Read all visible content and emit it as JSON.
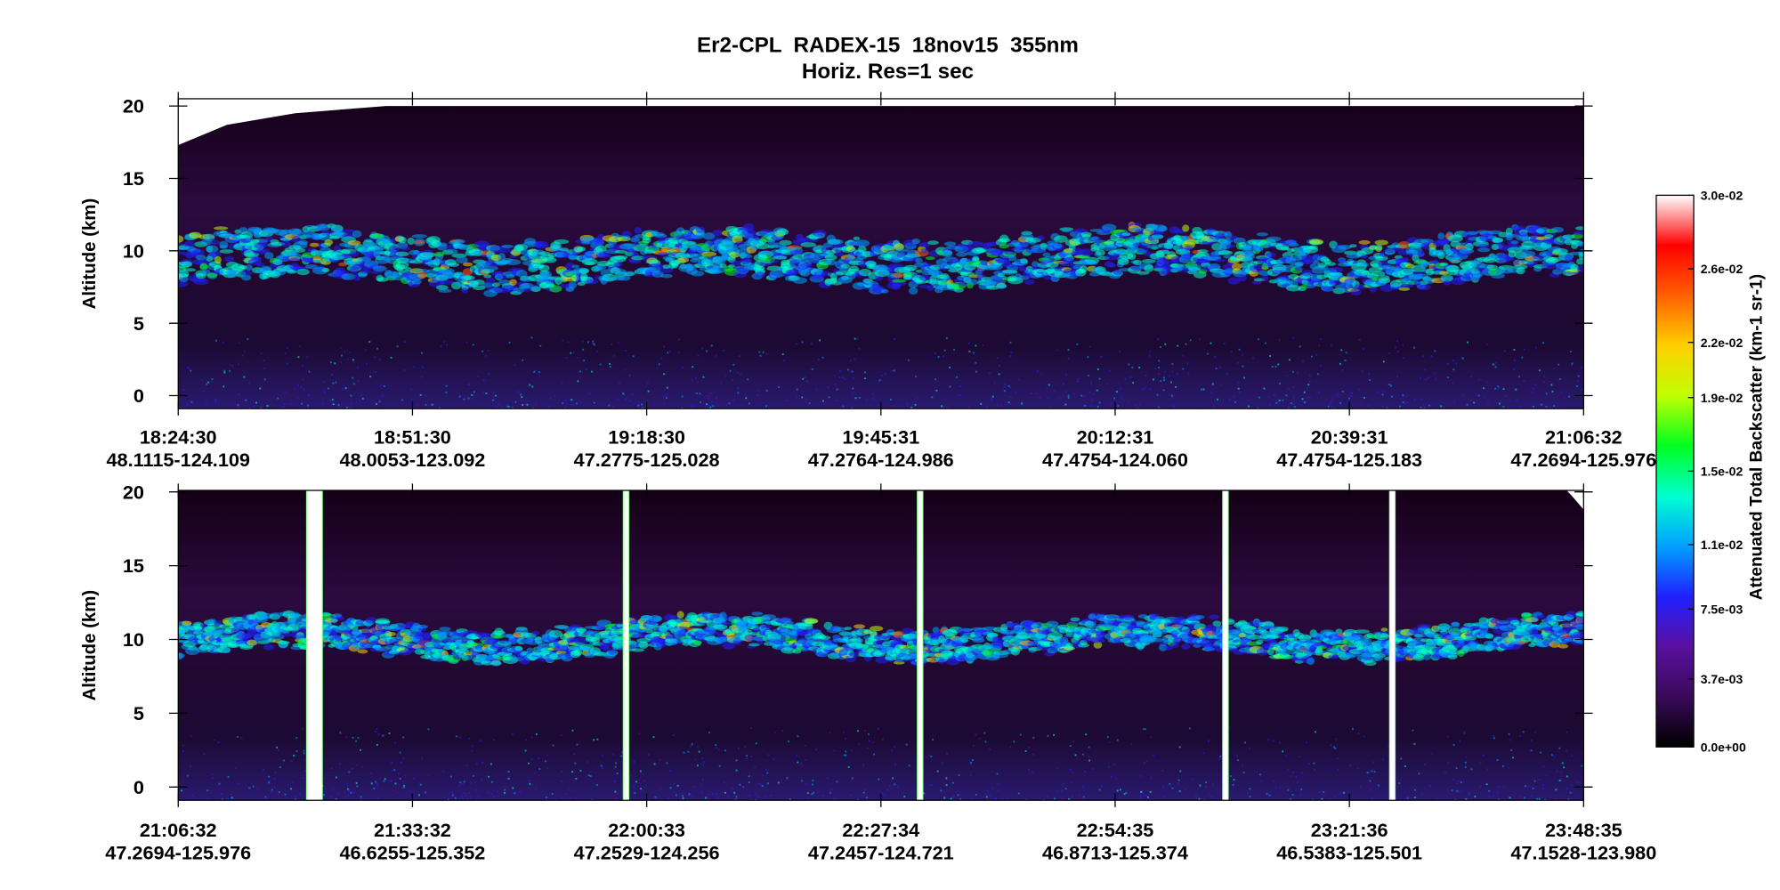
{
  "chart_data": {
    "type": "heatmap",
    "title": "Er2-CPL  RADEX-15  18nov15  355nm",
    "subtitle": "Horiz. Res=1 sec",
    "panels": [
      {
        "ylabel": "Altitude (km)",
        "ylim": [
          -0.9,
          20.5
        ],
        "yticks": [
          0,
          5,
          10,
          15,
          20
        ],
        "xticks": [
          {
            "time": "18:24:30",
            "location": "48.1115-124.109"
          },
          {
            "time": "18:51:30",
            "location": "48.0053-123.092"
          },
          {
            "time": "19:18:30",
            "location": "47.2775-125.028"
          },
          {
            "time": "19:45:31",
            "location": "47.2764-124.986"
          },
          {
            "time": "20:12:31",
            "location": "47.4754-124.060"
          },
          {
            "time": "20:39:31",
            "location": "47.4754-125.183"
          },
          {
            "time": "21:06:32",
            "location": "47.2694-125.976"
          }
        ]
      },
      {
        "ylabel": "Altitude (km)",
        "ylim": [
          -0.9,
          20.1
        ],
        "yticks": [
          0,
          5,
          10,
          15,
          20
        ],
        "xticks": [
          {
            "time": "21:06:32",
            "location": "47.2694-125.976"
          },
          {
            "time": "21:33:32",
            "location": "46.6255-125.352"
          },
          {
            "time": "22:00:33",
            "location": "47.2529-124.256"
          },
          {
            "time": "22:27:34",
            "location": "47.2457-124.721"
          },
          {
            "time": "22:54:35",
            "location": "46.8713-125.374"
          },
          {
            "time": "23:21:36",
            "location": "46.5383-125.501"
          },
          {
            "time": "23:48:35",
            "location": "47.1528-123.980"
          }
        ]
      }
    ],
    "colorbar": {
      "label": "Attenuated Total Backscatter (km-1 sr-1)",
      "lim": [
        0,
        0.03
      ],
      "ticks": [
        {
          "value": 0,
          "label": "0.0e+00"
        },
        {
          "value": 0.0037,
          "label": "3.7e-03"
        },
        {
          "value": 0.0075,
          "label": "7.5e-03"
        },
        {
          "value": 0.011,
          "label": "1.1e-02"
        },
        {
          "value": 0.015,
          "label": "1.5e-02"
        },
        {
          "value": 0.019,
          "label": "1.9e-02"
        },
        {
          "value": 0.022,
          "label": "2.2e-02"
        },
        {
          "value": 0.026,
          "label": "2.6e-02"
        },
        {
          "value": 0.03,
          "label": "3.0e-02"
        }
      ],
      "colors": [
        "#000000",
        "#3a0a5a",
        "#5a10a0",
        "#2020ff",
        "#00a0ff",
        "#00ffd0",
        "#00ff20",
        "#c0ff00",
        "#ffd000",
        "#ff6000",
        "#ff0000",
        "#ffffff"
      ]
    }
  }
}
